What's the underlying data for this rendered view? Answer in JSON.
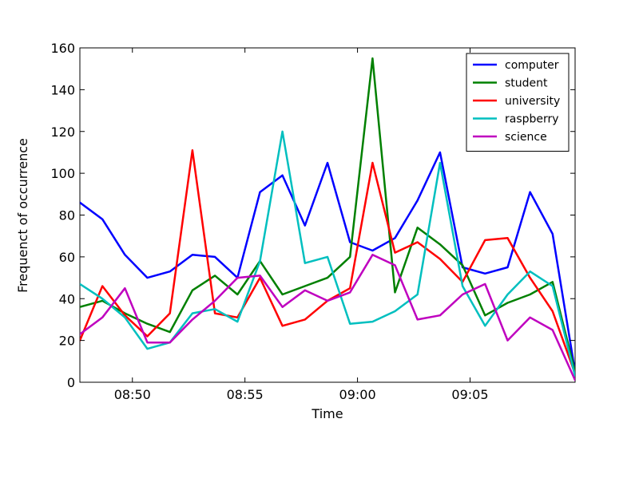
{
  "chart_data": {
    "type": "line",
    "xlabel": "Time",
    "ylabel": "Frequenct of occurrence",
    "ylim": [
      0,
      160
    ],
    "yticks": [
      0,
      20,
      40,
      60,
      80,
      100,
      120,
      140,
      160
    ],
    "xlim": [
      "08:47:40",
      "09:09:40"
    ],
    "xticks": [
      "08:50",
      "08:55",
      "09:00",
      "09:05"
    ],
    "x": [
      "08:47:40",
      "08:48:40",
      "08:49:40",
      "08:50:40",
      "08:51:40",
      "08:52:40",
      "08:53:40",
      "08:54:40",
      "08:55:40",
      "08:56:40",
      "08:57:40",
      "08:58:40",
      "08:59:40",
      "09:00:40",
      "09:01:40",
      "09:02:40",
      "09:03:40",
      "09:04:40",
      "09:05:40",
      "09:06:40",
      "09:07:40",
      "09:08:40",
      "09:09:40"
    ],
    "legend_position": "top-right",
    "grid": false,
    "series": [
      {
        "name": "computer",
        "color": "#0000ff",
        "values": [
          86,
          78,
          61,
          50,
          53,
          61,
          60,
          50,
          91,
          99,
          75,
          105,
          67,
          63,
          69,
          87,
          110,
          55,
          52,
          55,
          91,
          71,
          5
        ]
      },
      {
        "name": "student",
        "color": "#008000",
        "values": [
          36,
          39,
          33,
          28,
          24,
          44,
          51,
          42,
          58,
          42,
          46,
          50,
          60,
          155,
          43,
          74,
          66,
          56,
          32,
          38,
          42,
          48,
          5
        ]
      },
      {
        "name": "university",
        "color": "#ff0000",
        "values": [
          20,
          46,
          32,
          22,
          33,
          111,
          33,
          31,
          50,
          27,
          30,
          39,
          45,
          105,
          62,
          67,
          59,
          48,
          68,
          69,
          50,
          34,
          4
        ]
      },
      {
        "name": "raspberry",
        "color": "#00bfbf",
        "values": [
          47,
          40,
          31,
          16,
          19,
          33,
          35,
          29,
          58,
          120,
          57,
          60,
          28,
          29,
          34,
          42,
          105,
          46,
          27,
          42,
          53,
          46,
          3
        ]
      },
      {
        "name": "science",
        "color": "#bf00bf",
        "values": [
          23,
          31,
          45,
          19,
          19,
          30,
          39,
          50,
          51,
          36,
          44,
          39,
          43,
          61,
          56,
          30,
          32,
          42,
          47,
          20,
          31,
          25,
          1
        ]
      }
    ]
  }
}
